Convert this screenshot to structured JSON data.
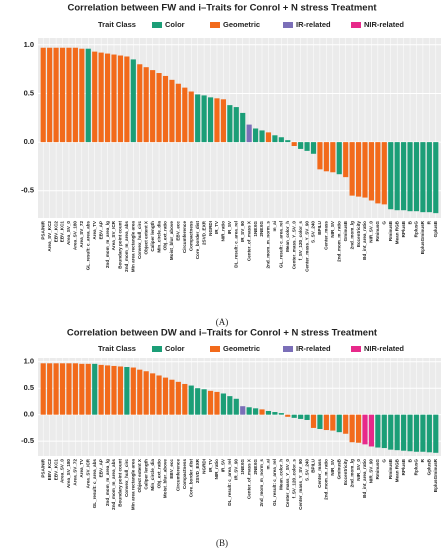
{
  "chart_data": [
    {
      "type": "bar",
      "title": "Correlation between FW and i–Traits for Conrol + N stress Treatment",
      "caption": "(A)",
      "legend": {
        "title": "Trait Class",
        "items": [
          {
            "name": "Color",
            "color": "#1b9e77"
          },
          {
            "name": "Geometric",
            "color": "#f26a1b"
          },
          {
            "name": "IR-related",
            "color": "#7b6fb8"
          },
          {
            "name": "NIR-related",
            "color": "#e7298a"
          }
        ]
      },
      "categories": [
        "PSA/NIR",
        "Area_SV_KC2",
        "EBV_KC2",
        "EBV_KC1",
        "Area_SV_0",
        "Area_SV_180",
        "Area_SV_72",
        "GL_result: c_area_abs",
        "Area_TV",
        "EBV_AP",
        "2nd_mom_m_area_lg",
        "Area_SV_ICR",
        "Boundary point count",
        "2nd_mom_m_area_abs",
        "Min area rectangle area",
        "Convex_hull_circ",
        "Object extent X",
        "Caliper length",
        "Min_circle_dia",
        "Obj_ext_ratio",
        "Moist_blur_above",
        "EBV_ecc",
        "Circumference",
        "Compactness",
        "Core_border_dist",
        "2SVD_EXR",
        "NGRDI",
        "IR_TV",
        "NIR_ratio",
        "IR_SV",
        "DL_result: c_area_rel",
        "IR_SV_90",
        "Center_of_mass X",
        "1NEXG",
        "2NEXG",
        "2nd_mom_m_norm_s",
        "m_ai",
        "GL_result: c_area_rel",
        "Mean_color_h",
        "Center_mass_Y_SV_0",
        "f_SV_120_color_s",
        "Center_mass_Y_SV_90",
        "S_SV_240",
        "BPILU",
        "Center_mass",
        "NIR_SV",
        "2nd_mom_m_ratio",
        "GminusB",
        "2nd_mom_lg",
        "Eccentricity",
        "Bd_int_area_ratio",
        "NIR_SV_0",
        "RminusG",
        "G",
        "RminusB",
        "Mean RGB",
        "RPlusB",
        "B",
        "RplusG",
        "BplusGminusR",
        "R",
        "GplusB"
      ],
      "values": [
        0.97,
        0.97,
        0.97,
        0.97,
        0.97,
        0.97,
        0.96,
        0.96,
        0.93,
        0.92,
        0.91,
        0.9,
        0.89,
        0.88,
        0.85,
        0.8,
        0.77,
        0.74,
        0.71,
        0.68,
        0.64,
        0.6,
        0.56,
        0.52,
        0.49,
        0.48,
        0.46,
        0.45,
        0.44,
        0.38,
        0.36,
        0.3,
        0.18,
        0.14,
        0.12,
        0.1,
        0.07,
        0.05,
        0.02,
        -0.04,
        -0.07,
        -0.09,
        -0.12,
        -0.28,
        -0.3,
        -0.31,
        -0.33,
        -0.36,
        -0.55,
        -0.56,
        -0.57,
        -0.6,
        -0.63,
        -0.64,
        -0.69,
        -0.7,
        -0.7,
        -0.71,
        -0.71,
        -0.72,
        -0.72,
        -0.73
      ],
      "bar_colors": [
        "#f26a1b",
        "#f26a1b",
        "#f26a1b",
        "#f26a1b",
        "#f26a1b",
        "#f26a1b",
        "#f26a1b",
        "#1b9e77",
        "#f26a1b",
        "#f26a1b",
        "#f26a1b",
        "#f26a1b",
        "#f26a1b",
        "#f26a1b",
        "#1b9e77",
        "#f26a1b",
        "#f26a1b",
        "#f26a1b",
        "#f26a1b",
        "#f26a1b",
        "#f26a1b",
        "#f26a1b",
        "#f26a1b",
        "#f26a1b",
        "#1b9e77",
        "#1b9e77",
        "#1b9e77",
        "#f26a1b",
        "#f26a1b",
        "#1b9e77",
        "#1b9e77",
        "#1b9e77",
        "#7b6fb8",
        "#1b9e77",
        "#1b9e77",
        "#f26a1b",
        "#1b9e77",
        "#1b9e77",
        "#1b9e77",
        "#f26a1b",
        "#1b9e77",
        "#1b9e77",
        "#1b9e77",
        "#f26a1b",
        "#f26a1b",
        "#f26a1b",
        "#1b9e77",
        "#f26a1b",
        "#f26a1b",
        "#f26a1b",
        "#f26a1b",
        "#f26a1b",
        "#f26a1b",
        "#f26a1b",
        "#1b9e77",
        "#1b9e77",
        "#1b9e77",
        "#1b9e77",
        "#1b9e77",
        "#1b9e77",
        "#1b9e77",
        "#1b9e77"
      ],
      "ylim": [
        -0.78,
        1.07
      ],
      "yticks": [
        {
          "value": 1,
          "label": "1.0"
        },
        0.5,
        {
          "value": 0,
          "label": "0.0"
        },
        -0.5
      ],
      "grid": true
    },
    {
      "type": "bar",
      "title": "Correlation between DW and i–Traits for Conrol + N stress Treatment",
      "caption": "(B)",
      "legend": {
        "title": "Trait Class",
        "items": [
          {
            "name": "Color",
            "color": "#1b9e77"
          },
          {
            "name": "Geometric",
            "color": "#f26a1b"
          },
          {
            "name": "IR-related",
            "color": "#7b6fb8"
          },
          {
            "name": "NIR-related",
            "color": "#e7298a"
          }
        ]
      },
      "categories": [
        "PSA/NIR",
        "EBV_KC2",
        "EBV_KC1",
        "Area_SV_0",
        "Area_SV_180",
        "Area_SV_72",
        "Area_TV",
        "Area_SV_ICR",
        "GL_result: c_area_abs",
        "EBV_AP",
        "2nd_mom_m_area_lg",
        "2nd_mom_m_area_abs",
        "Boundary point count",
        "Convex_hull_circ",
        "Min area rectangle area",
        "Object extent X",
        "Caliper length",
        "Min_circle_dia",
        "Obj_ext_ratio",
        "Moist_blur_above",
        "EBV_ecc",
        "Circumference",
        "Compactness",
        "Core_border_dist",
        "2SVD_EXR",
        "NGRDI",
        "IR_TV",
        "NIR_ratio",
        "IR_SV",
        "DL_result: c_area_rel",
        "IR_SV_90",
        "1NEXG",
        "Center_of_mass X",
        "2NEXG",
        "2nd_mom_m_norm_s",
        "m_ai",
        "GL_result: c_area_rel",
        "Mean_color_h",
        "Center_mass_Y_SV_0",
        "f_SV_120_color_s",
        "Center_mass_Y_SV_90",
        "S_SV_240",
        "BPILU",
        "Center_mass",
        "2nd_mom_m_ratio",
        "NIR_SV",
        "GminusB",
        "Eccentricity",
        "2nd_mom_lg",
        "NIR_SV_0",
        "Bd_int_area_ratio",
        "NIR_SV_90",
        "RminusG",
        "G",
        "RminusB",
        "Mean RGB",
        "RPlusB",
        "B",
        "RplusG",
        "R",
        "GplusB",
        "BplusGminusR"
      ],
      "values": [
        0.97,
        0.97,
        0.97,
        0.97,
        0.97,
        0.97,
        0.96,
        0.96,
        0.96,
        0.94,
        0.93,
        0.92,
        0.91,
        0.9,
        0.89,
        0.85,
        0.82,
        0.78,
        0.74,
        0.7,
        0.66,
        0.62,
        0.58,
        0.55,
        0.5,
        0.48,
        0.45,
        0.43,
        0.4,
        0.35,
        0.3,
        0.16,
        0.14,
        0.12,
        0.1,
        0.07,
        0.05,
        0.03,
        -0.04,
        -0.06,
        -0.08,
        -0.1,
        -0.25,
        -0.27,
        -0.29,
        -0.3,
        -0.33,
        -0.36,
        -0.52,
        -0.53,
        -0.56,
        -0.6,
        -0.62,
        -0.63,
        -0.66,
        -0.67,
        -0.68,
        -0.69,
        -0.7,
        -0.7,
        -0.71,
        -0.72
      ],
      "bar_colors": [
        "#f26a1b",
        "#f26a1b",
        "#f26a1b",
        "#f26a1b",
        "#f26a1b",
        "#f26a1b",
        "#f26a1b",
        "#f26a1b",
        "#1b9e77",
        "#f26a1b",
        "#f26a1b",
        "#f26a1b",
        "#f26a1b",
        "#1b9e77",
        "#f26a1b",
        "#f26a1b",
        "#f26a1b",
        "#f26a1b",
        "#f26a1b",
        "#f26a1b",
        "#f26a1b",
        "#f26a1b",
        "#f26a1b",
        "#1b9e77",
        "#1b9e77",
        "#1b9e77",
        "#f26a1b",
        "#f26a1b",
        "#1b9e77",
        "#1b9e77",
        "#1b9e77",
        "#7b6fb8",
        "#1b9e77",
        "#1b9e77",
        "#f26a1b",
        "#1b9e77",
        "#1b9e77",
        "#1b9e77",
        "#f26a1b",
        "#1b9e77",
        "#1b9e77",
        "#1b9e77",
        "#f26a1b",
        "#1b9e77",
        "#f26a1b",
        "#f26a1b",
        "#1b9e77",
        "#f26a1b",
        "#f26a1b",
        "#f26a1b",
        "#e7298a",
        "#e7298a",
        "#1b9e77",
        "#1b9e77",
        "#1b9e77",
        "#1b9e77",
        "#1b9e77",
        "#1b9e77",
        "#1b9e77",
        "#1b9e77",
        "#1b9e77",
        "#1b9e77"
      ],
      "ylim": [
        -0.78,
        1.07
      ],
      "yticks": [
        {
          "value": 1,
          "label": "1.0"
        },
        0.5,
        {
          "value": 0,
          "label": "0.0"
        },
        -0.5
      ],
      "grid": true
    }
  ]
}
